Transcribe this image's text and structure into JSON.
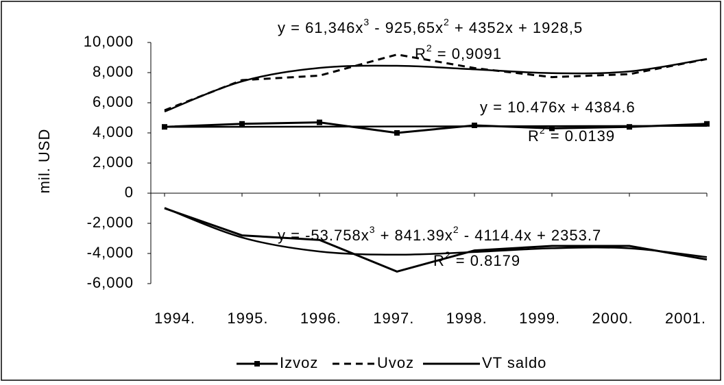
{
  "chart_data": {
    "type": "line",
    "y_axis_label": "mil. USD",
    "categories": [
      "1994.",
      "1995.",
      "1996.",
      "1997.",
      "1998.",
      "1999.",
      "2000.",
      "2001."
    ],
    "ylim": [
      -6000,
      10000
    ],
    "yticks": [
      {
        "value": -6000,
        "label": "-6,000"
      },
      {
        "value": -4000,
        "label": "-4,000"
      },
      {
        "value": -2000,
        "label": "-2,000"
      },
      0,
      {
        "value": 2000,
        "label": "2,000"
      },
      {
        "value": 4000,
        "label": "4,000"
      },
      {
        "value": 6000,
        "label": "6,000"
      },
      {
        "value": 8000,
        "label": "8,000"
      },
      {
        "value": 10000,
        "label": "10,000"
      }
    ],
    "series": [
      {
        "name": "Izvoz",
        "color": "#000000",
        "dash": "solid",
        "marker": "square",
        "values": [
          4400,
          4600,
          4700,
          4000,
          4500,
          4300,
          4400,
          4600
        ]
      },
      {
        "name": "Uvoz",
        "color": "#000000",
        "dash": "dashed",
        "values": [
          5500,
          7500,
          7800,
          9200,
          8300,
          7700,
          7900,
          8900
        ]
      },
      {
        "name": "VT saldo",
        "color": "#000000",
        "dash": "solid",
        "values": [
          -1000,
          -2800,
          -3100,
          -5200,
          -3800,
          -3500,
          -3500,
          -4400
        ]
      }
    ],
    "trendlines": [
      {
        "equation": [
          "y = 61,346x",
          "3",
          " - 925,65x",
          "2",
          " + 4352x + 1928,5"
        ],
        "r2": [
          "R",
          "2",
          " = 0,9091"
        ],
        "values": [
          5416,
          7421,
          8310,
          8452,
          8216,
          7968,
          8077,
          8912
        ]
      },
      {
        "equation": [
          "y = 10.476x + 4384.6"
        ],
        "r2": [
          "R",
          "2",
          " = 0.0139"
        ],
        "values": [
          4395,
          4406,
          4416,
          4427,
          4437,
          4447,
          4458,
          4468
        ]
      },
      {
        "equation": [
          "y = -53.758x",
          "3",
          " + 841.39x",
          "2",
          " - 4114.4x + 2353.7"
        ],
        "r2": [
          "R",
          "2",
          " = 0.8179"
        ],
        "values": [
          -973,
          -2940,
          -3869,
          -4082,
          -3903,
          -3654,
          -3658,
          -4237
        ]
      }
    ],
    "legend": "bottom"
  }
}
